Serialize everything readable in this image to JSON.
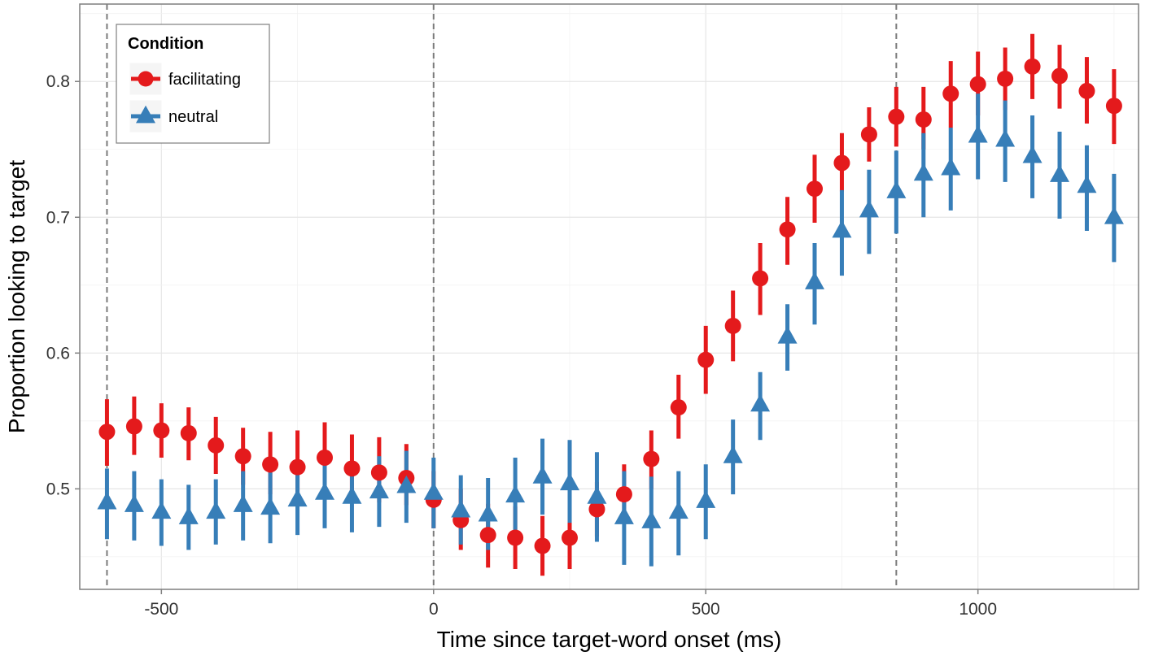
{
  "chart_data": {
    "type": "scatter",
    "xlabel": "Time since target-word onset (ms)",
    "ylabel": "Proportion looking to target",
    "xlim": [
      -650,
      1295
    ],
    "ylim": [
      0.426,
      0.857
    ],
    "x_ticks": [
      -500,
      0,
      500,
      1000
    ],
    "x_tick_labels": [
      "-500",
      "0",
      "500",
      "1000"
    ],
    "y_ticks": [
      0.5,
      0.6,
      0.7,
      0.8
    ],
    "y_tick_labels": [
      "0.5",
      "0.6",
      "0.7",
      "0.8"
    ],
    "grid": true,
    "reference_lines_x": [
      -600,
      0,
      850
    ],
    "legend": {
      "title": "Condition",
      "position": "top-left"
    },
    "series": [
      {
        "name": "facilitating",
        "color": "#e41a1c",
        "marker": "circle",
        "points": [
          {
            "x": -600,
            "y": 0.542,
            "lo": 0.517,
            "hi": 0.566
          },
          {
            "x": -550,
            "y": 0.546,
            "lo": 0.525,
            "hi": 0.568
          },
          {
            "x": -500,
            "y": 0.543,
            "lo": 0.523,
            "hi": 0.563
          },
          {
            "x": -450,
            "y": 0.541,
            "lo": 0.521,
            "hi": 0.56
          },
          {
            "x": -400,
            "y": 0.532,
            "lo": 0.511,
            "hi": 0.553
          },
          {
            "x": -350,
            "y": 0.524,
            "lo": 0.503,
            "hi": 0.545
          },
          {
            "x": -300,
            "y": 0.518,
            "lo": 0.496,
            "hi": 0.542
          },
          {
            "x": -250,
            "y": 0.516,
            "lo": 0.491,
            "hi": 0.543
          },
          {
            "x": -200,
            "y": 0.523,
            "lo": 0.499,
            "hi": 0.549
          },
          {
            "x": -150,
            "y": 0.515,
            "lo": 0.492,
            "hi": 0.54
          },
          {
            "x": -100,
            "y": 0.512,
            "lo": 0.49,
            "hi": 0.538
          },
          {
            "x": -50,
            "y": 0.508,
            "lo": 0.488,
            "hi": 0.533
          },
          {
            "x": 0,
            "y": 0.492,
            "lo": 0.471,
            "hi": 0.513
          },
          {
            "x": 50,
            "y": 0.477,
            "lo": 0.455,
            "hi": 0.5
          },
          {
            "x": 100,
            "y": 0.466,
            "lo": 0.442,
            "hi": 0.489
          },
          {
            "x": 150,
            "y": 0.464,
            "lo": 0.441,
            "hi": 0.487
          },
          {
            "x": 200,
            "y": 0.458,
            "lo": 0.436,
            "hi": 0.48
          },
          {
            "x": 250,
            "y": 0.464,
            "lo": 0.441,
            "hi": 0.486
          },
          {
            "x": 300,
            "y": 0.485,
            "lo": 0.465,
            "hi": 0.505
          },
          {
            "x": 350,
            "y": 0.496,
            "lo": 0.475,
            "hi": 0.518
          },
          {
            "x": 400,
            "y": 0.522,
            "lo": 0.5,
            "hi": 0.543
          },
          {
            "x": 450,
            "y": 0.56,
            "lo": 0.537,
            "hi": 0.584
          },
          {
            "x": 500,
            "y": 0.595,
            "lo": 0.57,
            "hi": 0.62
          },
          {
            "x": 550,
            "y": 0.62,
            "lo": 0.594,
            "hi": 0.646
          },
          {
            "x": 600,
            "y": 0.655,
            "lo": 0.628,
            "hi": 0.681
          },
          {
            "x": 650,
            "y": 0.691,
            "lo": 0.665,
            "hi": 0.715
          },
          {
            "x": 700,
            "y": 0.721,
            "lo": 0.696,
            "hi": 0.746
          },
          {
            "x": 750,
            "y": 0.74,
            "lo": 0.719,
            "hi": 0.762
          },
          {
            "x": 800,
            "y": 0.761,
            "lo": 0.741,
            "hi": 0.781
          },
          {
            "x": 850,
            "y": 0.774,
            "lo": 0.752,
            "hi": 0.796
          },
          {
            "x": 900,
            "y": 0.772,
            "lo": 0.75,
            "hi": 0.796
          },
          {
            "x": 950,
            "y": 0.791,
            "lo": 0.766,
            "hi": 0.815
          },
          {
            "x": 1000,
            "y": 0.798,
            "lo": 0.775,
            "hi": 0.822
          },
          {
            "x": 1050,
            "y": 0.802,
            "lo": 0.779,
            "hi": 0.825
          },
          {
            "x": 1100,
            "y": 0.811,
            "lo": 0.787,
            "hi": 0.835
          },
          {
            "x": 1150,
            "y": 0.804,
            "lo": 0.78,
            "hi": 0.827
          },
          {
            "x": 1200,
            "y": 0.793,
            "lo": 0.769,
            "hi": 0.818
          },
          {
            "x": 1250,
            "y": 0.782,
            "lo": 0.754,
            "hi": 0.809
          }
        ]
      },
      {
        "name": "neutral",
        "color": "#377eb8",
        "marker": "triangle",
        "points": [
          {
            "x": -600,
            "y": 0.49,
            "lo": 0.463,
            "hi": 0.515
          },
          {
            "x": -550,
            "y": 0.488,
            "lo": 0.462,
            "hi": 0.513
          },
          {
            "x": -500,
            "y": 0.483,
            "lo": 0.458,
            "hi": 0.507
          },
          {
            "x": -450,
            "y": 0.479,
            "lo": 0.455,
            "hi": 0.503
          },
          {
            "x": -400,
            "y": 0.483,
            "lo": 0.459,
            "hi": 0.507
          },
          {
            "x": -350,
            "y": 0.488,
            "lo": 0.462,
            "hi": 0.513
          },
          {
            "x": -300,
            "y": 0.486,
            "lo": 0.46,
            "hi": 0.512
          },
          {
            "x": -250,
            "y": 0.492,
            "lo": 0.466,
            "hi": 0.519
          },
          {
            "x": -200,
            "y": 0.497,
            "lo": 0.471,
            "hi": 0.524
          },
          {
            "x": -150,
            "y": 0.494,
            "lo": 0.468,
            "hi": 0.52
          },
          {
            "x": -100,
            "y": 0.498,
            "lo": 0.472,
            "hi": 0.524
          },
          {
            "x": -50,
            "y": 0.502,
            "lo": 0.475,
            "hi": 0.528
          },
          {
            "x": 0,
            "y": 0.497,
            "lo": 0.471,
            "hi": 0.523
          },
          {
            "x": 50,
            "y": 0.484,
            "lo": 0.459,
            "hi": 0.51
          },
          {
            "x": 100,
            "y": 0.481,
            "lo": 0.455,
            "hi": 0.508
          },
          {
            "x": 150,
            "y": 0.495,
            "lo": 0.466,
            "hi": 0.523
          },
          {
            "x": 200,
            "y": 0.509,
            "lo": 0.481,
            "hi": 0.537
          },
          {
            "x": 250,
            "y": 0.504,
            "lo": 0.475,
            "hi": 0.536
          },
          {
            "x": 300,
            "y": 0.494,
            "lo": 0.461,
            "hi": 0.527
          },
          {
            "x": 350,
            "y": 0.479,
            "lo": 0.444,
            "hi": 0.513
          },
          {
            "x": 400,
            "y": 0.476,
            "lo": 0.443,
            "hi": 0.509
          },
          {
            "x": 450,
            "y": 0.483,
            "lo": 0.451,
            "hi": 0.513
          },
          {
            "x": 500,
            "y": 0.491,
            "lo": 0.463,
            "hi": 0.518
          },
          {
            "x": 550,
            "y": 0.524,
            "lo": 0.496,
            "hi": 0.551
          },
          {
            "x": 600,
            "y": 0.562,
            "lo": 0.536,
            "hi": 0.586
          },
          {
            "x": 650,
            "y": 0.612,
            "lo": 0.587,
            "hi": 0.636
          },
          {
            "x": 700,
            "y": 0.652,
            "lo": 0.621,
            "hi": 0.681
          },
          {
            "x": 750,
            "y": 0.69,
            "lo": 0.657,
            "hi": 0.72
          },
          {
            "x": 800,
            "y": 0.705,
            "lo": 0.673,
            "hi": 0.735
          },
          {
            "x": 850,
            "y": 0.719,
            "lo": 0.688,
            "hi": 0.749
          },
          {
            "x": 900,
            "y": 0.732,
            "lo": 0.7,
            "hi": 0.762
          },
          {
            "x": 950,
            "y": 0.736,
            "lo": 0.705,
            "hi": 0.766
          },
          {
            "x": 1000,
            "y": 0.76,
            "lo": 0.728,
            "hi": 0.791
          },
          {
            "x": 1050,
            "y": 0.757,
            "lo": 0.726,
            "hi": 0.786
          },
          {
            "x": 1100,
            "y": 0.745,
            "lo": 0.714,
            "hi": 0.775
          },
          {
            "x": 1150,
            "y": 0.731,
            "lo": 0.699,
            "hi": 0.763
          },
          {
            "x": 1200,
            "y": 0.723,
            "lo": 0.69,
            "hi": 0.753
          },
          {
            "x": 1250,
            "y": 0.7,
            "lo": 0.667,
            "hi": 0.732
          }
        ]
      }
    ]
  }
}
